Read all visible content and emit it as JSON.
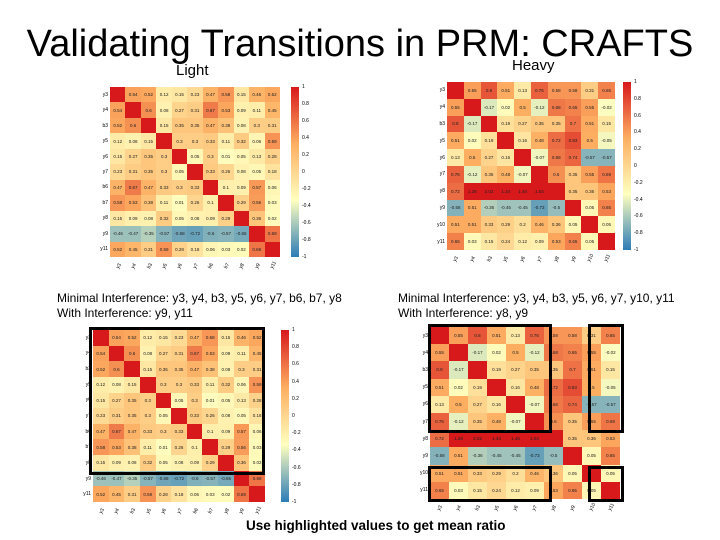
{
  "slide": {
    "title": "Validating Transitions in PRM: CRAFTS",
    "light_label": "Light",
    "heavy_label": "Heavy",
    "light_caption_1": "Minimal Interference: y3, y4, b3, y5, y6, y7, b6, b7, y8",
    "light_caption_2": "With Interference: y9, y11",
    "heavy_caption_1": "Minimal Interference: y3, y4, b3, y5, y6, y7, y10, y11",
    "heavy_caption_2": "With Interference: y8, y9",
    "bottom_note": "Use highlighted values to get mean ratio"
  },
  "light_matrix": {
    "labels": [
      "y3",
      "y4",
      "b3",
      "y5",
      "y6",
      "y7",
      "b6",
      "b7",
      "y8",
      "y9",
      "y11"
    ],
    "values": [
      [
        1,
        0.54,
        0.52,
        0.12,
        0.15,
        0.23,
        0.47,
        0.58,
        0.15,
        0.46,
        0.52
      ],
      [
        0.54,
        1,
        0.6,
        0.08,
        0.27,
        0.31,
        0.67,
        0.53,
        0.09,
        0.11,
        0.45
      ],
      [
        0.52,
        0.6,
        1,
        0.15,
        0.35,
        0.35,
        0.47,
        0.38,
        0.08,
        0.3,
        0.31
      ],
      [
        0.12,
        0.08,
        0.15,
        1,
        0.3,
        0.3,
        0.33,
        0.11,
        0.32,
        0.06,
        0.59
      ],
      [
        0.15,
        0.27,
        0.35,
        0.3,
        1,
        0.05,
        0.3,
        0.01,
        0.05,
        0.13,
        0.28
      ],
      [
        0.23,
        0.31,
        0.35,
        0.3,
        0.05,
        1,
        0.33,
        0.26,
        0.08,
        0.05,
        0.18
      ],
      [
        0.47,
        0.67,
        0.47,
        0.33,
        0.3,
        0.33,
        1,
        0.1,
        0.09,
        0.57,
        0.06
      ],
      [
        0.58,
        0.53,
        0.38,
        0.11,
        0.01,
        0.26,
        0.1,
        1,
        0.29,
        0.56,
        0.03
      ],
      [
        0.15,
        0.09,
        0.08,
        0.32,
        0.05,
        0.08,
        0.09,
        0.29,
        1,
        0.36,
        0.02
      ],
      [
        -0.46,
        -0.47,
        -0.35,
        -0.57,
        -0.68,
        -0.72,
        -0.6,
        -0.57,
        -0.65,
        1,
        0.69
      ],
      [
        0.52,
        0.45,
        0.31,
        0.59,
        0.28,
        0.18,
        0.06,
        0.03,
        0.02,
        0.69,
        1
      ]
    ],
    "colorbar_ticks": [
      "1",
      "0.8",
      "0.6",
      "0.4",
      "0.2",
      "0",
      "-0.2",
      "-0.4",
      "-0.6",
      "-0.8",
      "-1"
    ]
  },
  "heavy_matrix": {
    "labels": [
      "y3",
      "y4",
      "b3",
      "y5",
      "y6",
      "y7",
      "y8",
      "y9",
      "y10",
      "y11"
    ],
    "values": [
      [
        1,
        0.55,
        0.8,
        0.51,
        0.13,
        0.76,
        0.58,
        0.58,
        0.31,
        0.65
      ],
      [
        0.55,
        1,
        -0.17,
        0.02,
        0.5,
        -0.12,
        0.68,
        0.65,
        0.55,
        -0.02
      ],
      [
        0.8,
        -0.17,
        1,
        0.19,
        0.27,
        0.35,
        0.35,
        0.7,
        0.51,
        0.15
      ],
      [
        0.51,
        0.02,
        0.19,
        1,
        0.16,
        0.48,
        0.72,
        0.83,
        0.5,
        -0.05
      ],
      [
        0.13,
        0.5,
        0.27,
        0.16,
        1,
        -0.07,
        0.68,
        0.74,
        -0.57,
        -0.57
      ],
      [
        0.76,
        -0.12,
        0.35,
        0.48,
        -0.07,
        1,
        0.6,
        0.35,
        0.55,
        0.69
      ],
      [
        0.72,
        1.28,
        2.02,
        1.34,
        1.46,
        1.04,
        1,
        0.35,
        0.36,
        0.53
      ],
      [
        -0.58,
        0.51,
        -0.36,
        -0.45,
        -0.45,
        -0.73,
        -0.5,
        1,
        0.05,
        0.65
      ],
      [
        0.51,
        0.51,
        0.33,
        0.29,
        0.2,
        0.46,
        0.36,
        0.05,
        1,
        0.05
      ],
      [
        0.65,
        0.03,
        0.15,
        0.24,
        0.12,
        0.09,
        0.53,
        0.65,
        0.05,
        1
      ]
    ],
    "colorbar_ticks": [
      "1",
      "0.8",
      "0.6",
      "0.4",
      "0.2",
      "0",
      "-0.2",
      "-0.4",
      "-0.6",
      "-0.8",
      "-1"
    ]
  },
  "colors": {
    "positive": "#d7191c",
    "mid_positive": "#fdae61",
    "neutral": "#ffffbf",
    "negative": "#2c7bb6",
    "diag": "#d7191c"
  }
}
